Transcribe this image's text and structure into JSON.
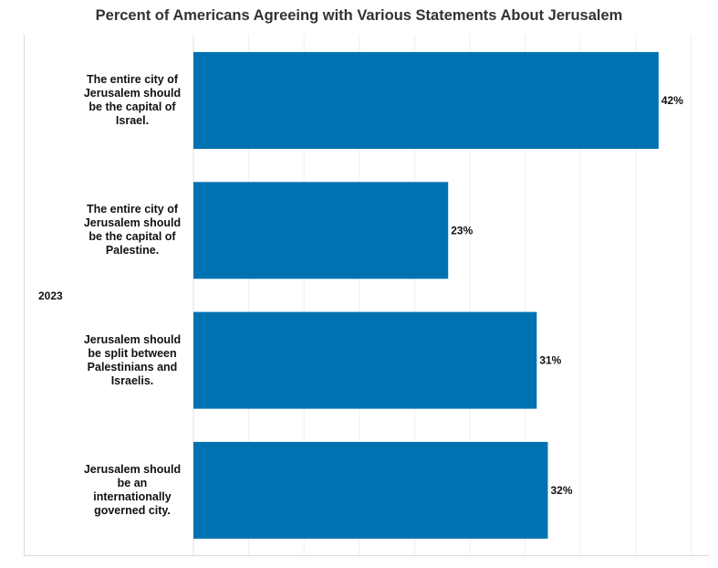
{
  "chart_data": {
    "type": "bar",
    "orientation": "horizontal",
    "title": "Percent of Americans Agreeing with Various Statements About Jerusalem",
    "group_label": "2023",
    "categories": [
      "The entire city of Jerusalem should be the capital of Israel.",
      "The entire city of Jerusalem should be the capital of Palestine.",
      "Jerusalem should be split between Palestinians and Israelis.",
      "Jerusalem should be an internationally governed city."
    ],
    "values": [
      42,
      23,
      31,
      32
    ],
    "value_labels": [
      "42%",
      "23%",
      "31%",
      "32%"
    ],
    "xlim": [
      0,
      45
    ],
    "bar_color": "#0072B2",
    "grid": "vertical"
  }
}
